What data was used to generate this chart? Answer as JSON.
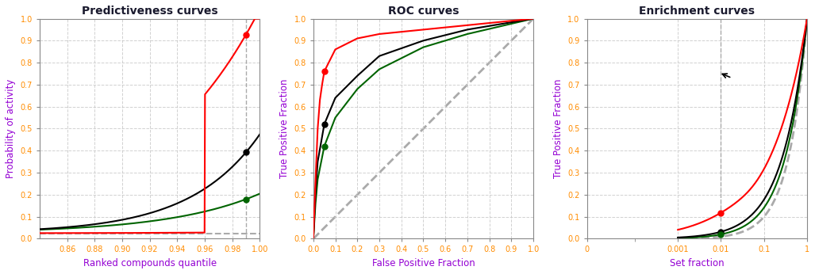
{
  "title1": "Predictiveness curves",
  "title2": "ROC curves",
  "title3": "Enrichment curves",
  "xlabel1": "Ranked compounds quantile",
  "xlabel2": "False Positive Fraction",
  "xlabel3": "Set fraction",
  "ylabel1": "Probability of activity",
  "ylabel23": "True Positive Fraction",
  "color_red": "#ff0000",
  "color_black": "#000000",
  "color_green": "#006400",
  "color_dashed": "#aaaaaa",
  "color_title": "#1a1a2e",
  "color_axis_label": "#9400d3",
  "color_tick": "#ff8c00",
  "color_grid": "#cccccc",
  "lw": 1.5
}
